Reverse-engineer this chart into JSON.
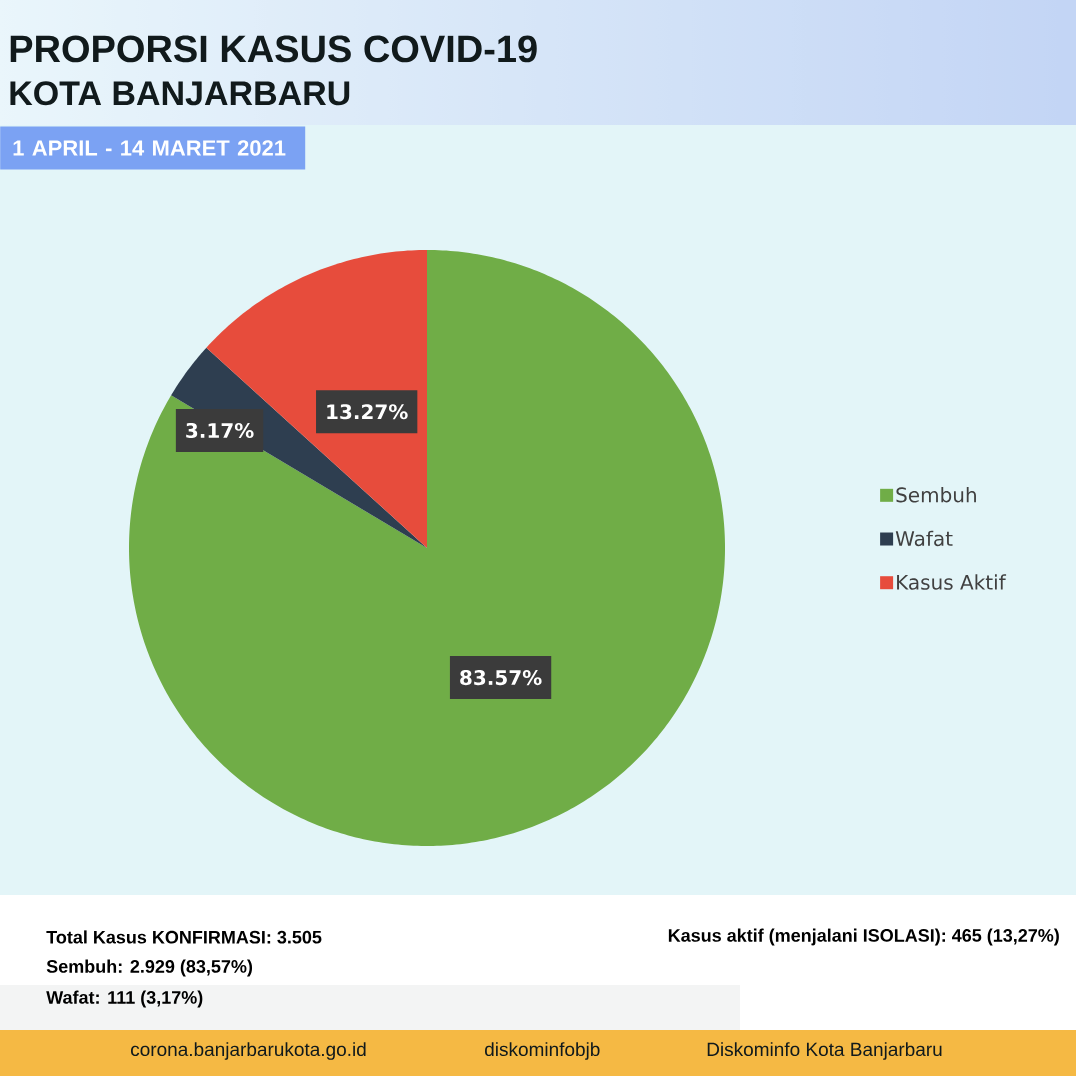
{
  "chart_data": {
    "type": "pie",
    "title": "PROPORSI KASUS COVID-19",
    "subtitle": "KOTA BANJARBARU",
    "categories": [
      "Sembuh",
      "Wafat",
      "Kasus Aktif"
    ],
    "values": [
      83.57,
      3.17,
      13.27
    ],
    "colors": [
      "#70ad47",
      "#2e3e50",
      "#e74c3c"
    ],
    "value_labels": [
      "83.57%",
      "3.17%",
      "13.27%"
    ],
    "legend": "right",
    "annotations": [
      "1 APRIL - 14 MARET 2021",
      "Total Kasus KONFIRMASI: 3.505",
      "Sembuh: 2.929 (83,57%)",
      "Wafat: 111 (3,17%)",
      "Kasus aktif (menjalani ISOLASI): 465 (13,27%)",
      "corona.banjarbarukota.go.id",
      "diskominfobjb",
      "Diskominfo Kota Banjarbaru"
    ]
  }
}
